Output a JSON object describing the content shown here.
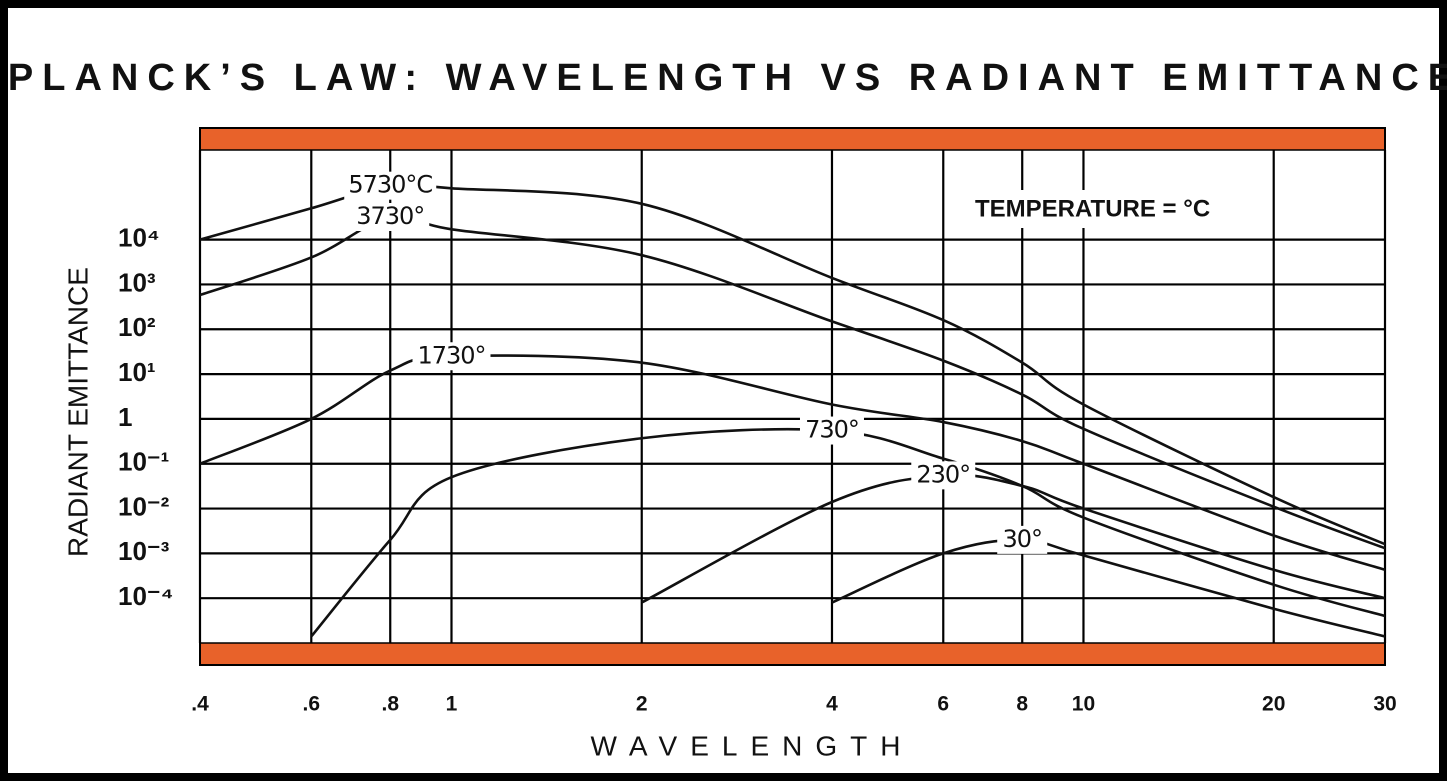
{
  "chart_data": {
    "type": "line",
    "title": "PLANCK’S LAW: WAVELENGTH VS RADIANT EMITTANCE",
    "x_label": "WAVELENGTH",
    "y_label": "RADIANT EMITTANCE",
    "annotation": "TEMPERATURE  =  °C",
    "xscale": "log",
    "yscale": "log",
    "grid": true,
    "band_color": "#e8622a",
    "x": [
      0.4,
      0.6,
      0.8,
      1,
      2,
      4,
      6,
      8,
      10,
      20,
      30
    ],
    "xlim": [
      0.4,
      30
    ],
    "xticks": [
      {
        "value": 0.4,
        "label": ".4"
      },
      {
        "value": 0.6,
        "label": ".6"
      },
      {
        "value": 0.8,
        "label": ".8"
      },
      1,
      2,
      4,
      6,
      8,
      10,
      20,
      30
    ],
    "ylim": [
      1e-05,
      1000000
    ],
    "yticks": [
      {
        "value": 10000,
        "label": "10⁴"
      },
      {
        "value": 1000,
        "label": "10³"
      },
      {
        "value": 100,
        "label": "10²"
      },
      {
        "value": 10,
        "label": "10¹"
      },
      1,
      {
        "value": 0.1,
        "label": "10⁻¹"
      },
      {
        "value": 0.01,
        "label": "10⁻²"
      },
      {
        "value": 0.001,
        "label": "10⁻³"
      },
      {
        "value": 0.0001,
        "label": "10⁻⁴"
      }
    ],
    "series": [
      {
        "name": "5730°C",
        "color": "#111111",
        "values": [
          10000,
          50000,
          160000,
          140000,
          63000,
          1400,
          160,
          18,
          2.1,
          0.018,
          0.0016
        ]
      },
      {
        "name": "3730°",
        "color": "#111111",
        "values": [
          580,
          4000,
          32000,
          17000,
          4500,
          150,
          20,
          3.5,
          0.6,
          0.011,
          0.0013
        ]
      },
      {
        "name": "1730°",
        "color": "#111111",
        "values": [
          0.1,
          1,
          12,
          25,
          18,
          2.1,
          0.85,
          0.32,
          0.1,
          0.0025,
          0.00043
        ]
      },
      {
        "name": "730°",
        "color": "#111111",
        "values": [
          null,
          1.4e-05,
          0.002,
          0.05,
          0.37,
          0.55,
          0.13,
          0.032,
          0.0063,
          0.0002,
          4e-05
        ]
      },
      {
        "name": "230°",
        "color": "#111111",
        "values": [
          null,
          null,
          null,
          null,
          8e-05,
          0.014,
          0.055,
          0.032,
          0.01,
          0.00043,
          0.0001
        ]
      },
      {
        "name": "30°",
        "color": "#111111",
        "values": [
          null,
          null,
          null,
          null,
          null,
          8e-05,
          0.001,
          0.002,
          0.0009,
          5.8e-05,
          1.4e-05
        ]
      }
    ]
  }
}
